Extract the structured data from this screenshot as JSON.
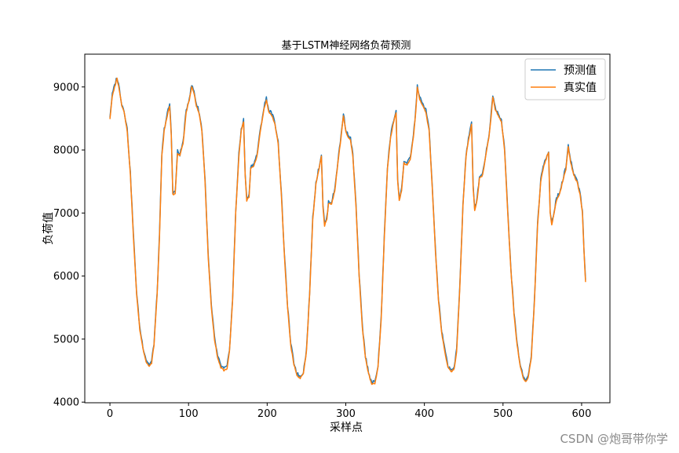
{
  "chart_data": {
    "type": "line",
    "title": "基于LSTM神经网络负荷预测",
    "xlabel": "采样点",
    "ylabel": "负荷值",
    "xlim": [
      -32,
      636
    ],
    "ylim": [
      3990,
      9520
    ],
    "xticks": [
      0,
      100,
      200,
      300,
      400,
      500,
      600
    ],
    "yticks": [
      4000,
      5000,
      6000,
      7000,
      8000,
      9000
    ],
    "grid": false,
    "legend_position": "top-right",
    "x_start": 0,
    "x_end": 605,
    "keypoints": [
      [
        0,
        8500
      ],
      [
        3,
        8850
      ],
      [
        6,
        9000
      ],
      [
        9,
        9130
      ],
      [
        12,
        8950
      ],
      [
        15,
        8700
      ],
      [
        18,
        8600
      ],
      [
        22,
        8300
      ],
      [
        26,
        7600
      ],
      [
        30,
        6600
      ],
      [
        34,
        5700
      ],
      [
        38,
        5150
      ],
      [
        42,
        4850
      ],
      [
        46,
        4650
      ],
      [
        50,
        4560
      ],
      [
        53,
        4620
      ],
      [
        56,
        4900
      ],
      [
        60,
        5700
      ],
      [
        63,
        6600
      ],
      [
        66,
        7900
      ],
      [
        69,
        8300
      ],
      [
        73,
        8550
      ],
      [
        76,
        8700
      ],
      [
        78,
        8250
      ],
      [
        80,
        7300
      ],
      [
        83,
        7300
      ],
      [
        86,
        7950
      ],
      [
        89,
        7900
      ],
      [
        93,
        8100
      ],
      [
        97,
        8600
      ],
      [
        101,
        8800
      ],
      [
        104,
        9000
      ],
      [
        107,
        8900
      ],
      [
        110,
        8700
      ],
      [
        113,
        8600
      ],
      [
        117,
        8300
      ],
      [
        121,
        7500
      ],
      [
        125,
        6300
      ],
      [
        129,
        5500
      ],
      [
        133,
        5000
      ],
      [
        137,
        4700
      ],
      [
        141,
        4550
      ],
      [
        145,
        4500
      ],
      [
        149,
        4530
      ],
      [
        152,
        4800
      ],
      [
        156,
        5600
      ],
      [
        160,
        7000
      ],
      [
        164,
        7900
      ],
      [
        167,
        8300
      ],
      [
        170,
        8450
      ],
      [
        172,
        7600
      ],
      [
        174,
        7200
      ],
      [
        177,
        7250
      ],
      [
        179,
        7700
      ],
      [
        183,
        7750
      ],
      [
        187,
        7900
      ],
      [
        192,
        8350
      ],
      [
        196,
        8650
      ],
      [
        199,
        8800
      ],
      [
        202,
        8600
      ],
      [
        206,
        8550
      ],
      [
        210,
        8400
      ],
      [
        214,
        8100
      ],
      [
        218,
        7300
      ],
      [
        222,
        6300
      ],
      [
        226,
        5500
      ],
      [
        230,
        4900
      ],
      [
        234,
        4600
      ],
      [
        238,
        4420
      ],
      [
        242,
        4380
      ],
      [
        246,
        4450
      ],
      [
        250,
        4800
      ],
      [
        254,
        5700
      ],
      [
        258,
        6900
      ],
      [
        262,
        7450
      ],
      [
        266,
        7700
      ],
      [
        269,
        7900
      ],
      [
        271,
        7100
      ],
      [
        273,
        6800
      ],
      [
        276,
        6900
      ],
      [
        278,
        7150
      ],
      [
        282,
        7150
      ],
      [
        286,
        7350
      ],
      [
        290,
        7800
      ],
      [
        294,
        8200
      ],
      [
        297,
        8550
      ],
      [
        300,
        8300
      ],
      [
        303,
        8200
      ],
      [
        306,
        8150
      ],
      [
        309,
        7900
      ],
      [
        313,
        7100
      ],
      [
        317,
        6000
      ],
      [
        321,
        5200
      ],
      [
        325,
        4700
      ],
      [
        329,
        4450
      ],
      [
        333,
        4280
      ],
      [
        337,
        4290
      ],
      [
        341,
        4550
      ],
      [
        345,
        5300
      ],
      [
        349,
        6600
      ],
      [
        353,
        7700
      ],
      [
        357,
        8200
      ],
      [
        361,
        8450
      ],
      [
        364,
        8600
      ],
      [
        366,
        7500
      ],
      [
        368,
        7200
      ],
      [
        371,
        7350
      ],
      [
        374,
        7800
      ],
      [
        378,
        7750
      ],
      [
        382,
        7850
      ],
      [
        386,
        8200
      ],
      [
        389,
        8600
      ],
      [
        391,
        9000
      ],
      [
        394,
        8800
      ],
      [
        398,
        8700
      ],
      [
        402,
        8600
      ],
      [
        406,
        8300
      ],
      [
        410,
        7400
      ],
      [
        414,
        6400
      ],
      [
        418,
        5600
      ],
      [
        422,
        5100
      ],
      [
        426,
        4800
      ],
      [
        430,
        4550
      ],
      [
        434,
        4480
      ],
      [
        438,
        4530
      ],
      [
        441,
        4800
      ],
      [
        445,
        5800
      ],
      [
        449,
        7100
      ],
      [
        453,
        7900
      ],
      [
        456,
        8150
      ],
      [
        460,
        8400
      ],
      [
        462,
        7400
      ],
      [
        464,
        7050
      ],
      [
        467,
        7200
      ],
      [
        470,
        7550
      ],
      [
        474,
        7600
      ],
      [
        478,
        7900
      ],
      [
        482,
        8200
      ],
      [
        485,
        8550
      ],
      [
        487,
        8850
      ],
      [
        490,
        8650
      ],
      [
        494,
        8550
      ],
      [
        498,
        8450
      ],
      [
        502,
        8000
      ],
      [
        506,
        7000
      ],
      [
        510,
        6100
      ],
      [
        514,
        5400
      ],
      [
        518,
        4900
      ],
      [
        522,
        4550
      ],
      [
        526,
        4380
      ],
      [
        529,
        4320
      ],
      [
        532,
        4380
      ],
      [
        536,
        4700
      ],
      [
        540,
        5600
      ],
      [
        544,
        6800
      ],
      [
        548,
        7500
      ],
      [
        552,
        7750
      ],
      [
        556,
        7900
      ],
      [
        558,
        7950
      ],
      [
        560,
        7000
      ],
      [
        562,
        6800
      ],
      [
        565,
        7000
      ],
      [
        568,
        7200
      ],
      [
        572,
        7300
      ],
      [
        576,
        7500
      ],
      [
        580,
        7700
      ],
      [
        583,
        8050
      ],
      [
        586,
        7800
      ],
      [
        590,
        7600
      ],
      [
        594,
        7500
      ],
      [
        598,
        7300
      ],
      [
        601,
        7000
      ],
      [
        603,
        6400
      ],
      [
        605,
        5900
      ]
    ],
    "series": [
      {
        "name": "预测值",
        "color": "#1f77b4",
        "offset": 30
      },
      {
        "name": "真实值",
        "color": "#ff7f0e",
        "offset": 0
      }
    ]
  },
  "watermark": "CSDN @炮哥带你学"
}
